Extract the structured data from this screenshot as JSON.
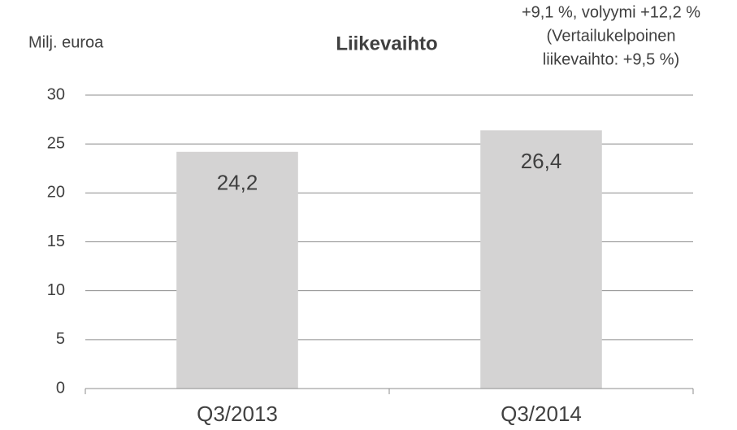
{
  "chart_data": {
    "type": "bar",
    "title": "Liikevaihto",
    "y_axis_label": "Milj. euroa",
    "annotation": [
      "+9,1 %, volyymi +12,2 %",
      "(Vertailukelpoinen",
      "liikevaihto: +9,5 %)"
    ],
    "categories": [
      "Q3/2013",
      "Q3/2014"
    ],
    "values": [
      24.2,
      26.4
    ],
    "value_labels": [
      "24,2",
      "26,4"
    ],
    "color": "#d4d3d3",
    "ylim": [
      0,
      30
    ],
    "yticks": [
      0,
      5,
      10,
      15,
      20,
      25,
      30
    ],
    "grid": true
  }
}
